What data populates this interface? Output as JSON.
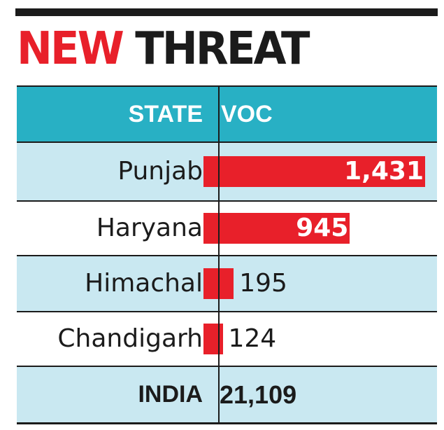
{
  "chart_data": {
    "type": "table",
    "title_parts": [
      "NEW",
      "THREAT"
    ],
    "columns": [
      "STATE",
      "VOC"
    ],
    "rows": [
      {
        "state": "Punjab",
        "value": 1431,
        "label": "1,431"
      },
      {
        "state": "Haryana",
        "value": 945,
        "label": "945"
      },
      {
        "state": "Himachal",
        "value": 195,
        "label": "195"
      },
      {
        "state": "Chandigarh",
        "value": 124,
        "label": "124"
      }
    ],
    "total": {
      "state": "INDIA",
      "label": "21,109"
    },
    "bar_color": "#e8202a",
    "header_color": "#28b0c4",
    "stripe_color": "#c9e8f1"
  }
}
